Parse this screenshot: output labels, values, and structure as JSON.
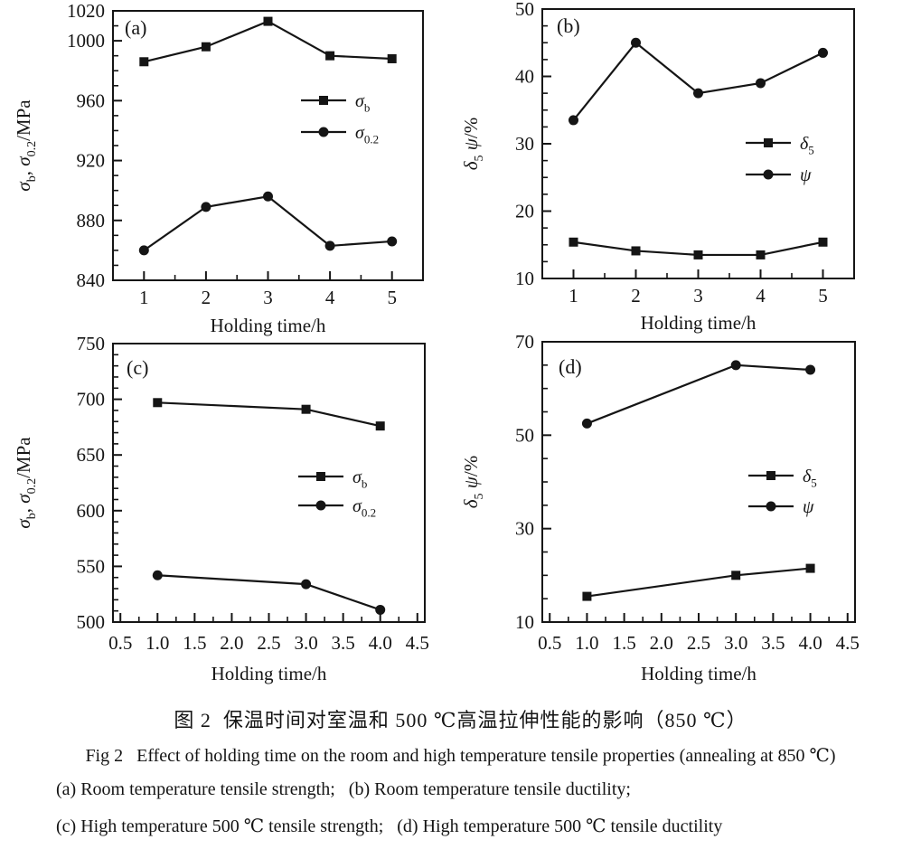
{
  "caption": {
    "zh": "图 2  保温时间对室温和 500 ℃高温拉伸性能的影响（850 ℃）",
    "en": "Fig 2   Effect of holding time on the room and high temperature tensile properties (annealing at 850 ℃)",
    "line3": "(a) Room temperature tensile strength;   (b) Room temperature tensile ductility;",
    "line4": "(c) High temperature 500 ℃ tensile strength;   (d) High temperature 500 ℃ tensile ductility"
  },
  "ink_color": "#151515",
  "chart_data": [
    {
      "id": "a",
      "type": "line",
      "panel_label": "(a)",
      "xlabel": "Holding time/h",
      "ylabel_parts": [
        {
          "t": "σ",
          "i": true
        },
        {
          "t": "b",
          "sub": true
        },
        {
          "t": ", ",
          "i": false
        },
        {
          "t": "σ",
          "i": true
        },
        {
          "t": "0.2",
          "sub": true
        },
        {
          "t": "/MPa"
        }
      ],
      "xlim": [
        0.5,
        5.5
      ],
      "ylim": [
        840,
        1020
      ],
      "xticks": [
        1,
        2,
        3,
        4,
        5
      ],
      "xtick_labels": [
        "1",
        "2",
        "3",
        "4",
        "5"
      ],
      "x_minor": 0.5,
      "yticks": [
        840,
        880,
        920,
        960,
        1000,
        1020
      ],
      "ytick_labels": [
        "840",
        "880",
        "920",
        "960",
        "1000",
        "1020"
      ],
      "y_minor": 10,
      "grid": false,
      "legend_position": "inside-center-right",
      "series": [
        {
          "name": "sigma_b",
          "name_parts": [
            {
              "t": "σ",
              "i": true
            },
            {
              "t": "b",
              "sub": true
            }
          ],
          "marker": "square",
          "x": [
            1,
            2,
            3,
            4,
            5
          ],
          "y": [
            986,
            996,
            1013,
            990,
            988
          ]
        },
        {
          "name": "sigma_0.2",
          "name_parts": [
            {
              "t": "σ",
              "i": true
            },
            {
              "t": "0.2",
              "sub": true
            }
          ],
          "marker": "circle",
          "x": [
            1,
            2,
            3,
            4,
            5
          ],
          "y": [
            860,
            889,
            896,
            863,
            866
          ]
        }
      ]
    },
    {
      "id": "b",
      "type": "line",
      "panel_label": "(b)",
      "xlabel": "Holding time/h",
      "ylabel_parts": [
        {
          "t": "δ",
          "i": true
        },
        {
          "t": "5",
          "sub": true
        },
        {
          "t": " ",
          "i": false
        },
        {
          "t": "ψ",
          "i": true
        },
        {
          "t": "/%"
        }
      ],
      "xlim": [
        0.5,
        5.5
      ],
      "ylim": [
        10,
        50
      ],
      "xticks": [
        1,
        2,
        3,
        4,
        5
      ],
      "xtick_labels": [
        "1",
        "2",
        "3",
        "4",
        "5"
      ],
      "x_minor": 0.5,
      "yticks": [
        10,
        20,
        30,
        40,
        50
      ],
      "ytick_labels": [
        "10",
        "20",
        "30",
        "40",
        "50"
      ],
      "y_minor": 2.5,
      "grid": false,
      "legend_position": "inside-center-right",
      "series": [
        {
          "name": "delta_5",
          "name_parts": [
            {
              "t": "δ",
              "i": true
            },
            {
              "t": "5",
              "sub": true
            }
          ],
          "marker": "square",
          "x": [
            1,
            2,
            3,
            4,
            5
          ],
          "y": [
            15.4,
            14.1,
            13.5,
            13.5,
            15.4
          ]
        },
        {
          "name": "psi",
          "name_parts": [
            {
              "t": "ψ",
              "i": true
            }
          ],
          "marker": "circle",
          "x": [
            1,
            2,
            3,
            4,
            5
          ],
          "y": [
            33.5,
            45.0,
            37.5,
            39.0,
            43.5
          ]
        }
      ]
    },
    {
      "id": "c",
      "type": "line",
      "panel_label": "(c)",
      "xlabel": "Holding time/h",
      "ylabel_parts": [
        {
          "t": "σ",
          "i": true
        },
        {
          "t": "b",
          "sub": true
        },
        {
          "t": ", ",
          "i": false
        },
        {
          "t": "σ",
          "i": true
        },
        {
          "t": "0.2",
          "sub": true
        },
        {
          "t": "/MPa"
        }
      ],
      "xlim": [
        0.4,
        4.6
      ],
      "ylim": [
        500,
        750
      ],
      "xticks": [
        0.5,
        1.0,
        1.5,
        2.0,
        2.5,
        3.0,
        3.5,
        4.0,
        4.5
      ],
      "xtick_labels": [
        "0.5",
        "1.0",
        "1.5",
        "2.0",
        "2.5",
        "3.0",
        "3.5",
        "4.0",
        "4.5"
      ],
      "x_minor": 0.25,
      "yticks": [
        500,
        550,
        600,
        650,
        700,
        750
      ],
      "ytick_labels": [
        "500",
        "550",
        "600",
        "650",
        "700",
        "750"
      ],
      "y_minor": 10,
      "grid": false,
      "legend_position": "inside-center-right",
      "series": [
        {
          "name": "sigma_b",
          "name_parts": [
            {
              "t": "σ",
              "i": true
            },
            {
              "t": "b",
              "sub": true
            }
          ],
          "marker": "square",
          "x": [
            1.0,
            3.0,
            4.0
          ],
          "y": [
            697,
            691,
            676
          ]
        },
        {
          "name": "sigma_0.2",
          "name_parts": [
            {
              "t": "σ",
              "i": true
            },
            {
              "t": "0.2",
              "sub": true
            }
          ],
          "marker": "circle",
          "x": [
            1.0,
            3.0,
            4.0
          ],
          "y": [
            542,
            534,
            511
          ]
        }
      ]
    },
    {
      "id": "d",
      "type": "line",
      "panel_label": "(d)",
      "xlabel": "Holding time/h",
      "ylabel_parts": [
        {
          "t": "δ",
          "i": true
        },
        {
          "t": "5",
          "sub": true
        },
        {
          "t": " ",
          "i": false
        },
        {
          "t": "ψ",
          "i": true
        },
        {
          "t": "/%"
        }
      ],
      "xlim": [
        0.4,
        4.6
      ],
      "ylim": [
        10,
        70
      ],
      "xticks": [
        0.5,
        1.0,
        1.5,
        2.0,
        2.5,
        3.0,
        3.5,
        4.0,
        4.5
      ],
      "xtick_labels": [
        "0.5",
        "1.0",
        "1.5",
        "2.0",
        "2.5",
        "3.0",
        "3.5",
        "4.0",
        "4.5"
      ],
      "x_minor": 0.25,
      "yticks": [
        10,
        30,
        50,
        70
      ],
      "ytick_labels": [
        "10",
        "30",
        "50",
        "70"
      ],
      "y_minor": 5,
      "grid": false,
      "legend_position": "inside-center-right",
      "series": [
        {
          "name": "delta_5",
          "name_parts": [
            {
              "t": "δ",
              "i": true
            },
            {
              "t": "5",
              "sub": true
            }
          ],
          "marker": "square",
          "x": [
            1.0,
            3.0,
            4.0
          ],
          "y": [
            15.5,
            20.0,
            21.5
          ]
        },
        {
          "name": "psi",
          "name_parts": [
            {
              "t": "ψ",
              "i": true
            }
          ],
          "marker": "circle",
          "x": [
            1.0,
            3.0,
            4.0
          ],
          "y": [
            52.5,
            65.0,
            64.0
          ]
        }
      ]
    }
  ]
}
